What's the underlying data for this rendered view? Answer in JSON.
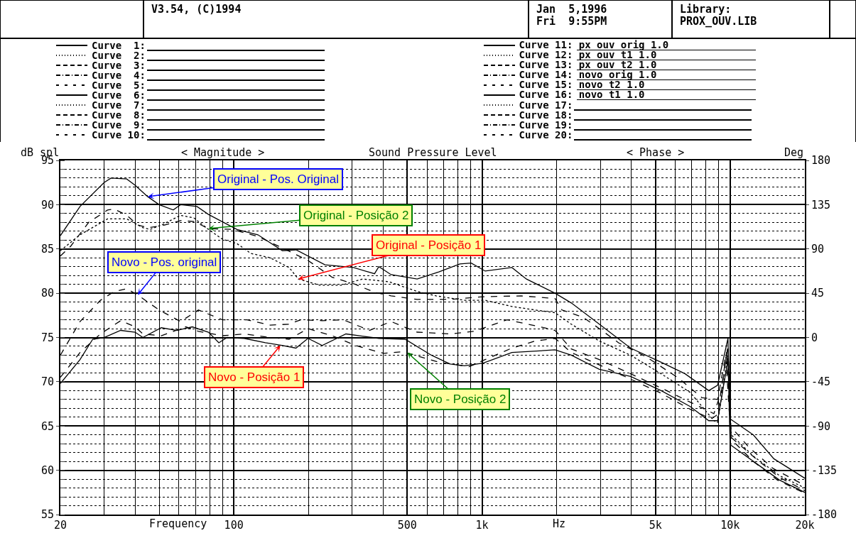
{
  "chart_data": {
    "type": "line",
    "title": "Sound Pressure Level",
    "xlabel": "Frequency",
    "ylabel": "dB spl",
    "y2label": "Deg",
    "log": "x",
    "grid": true,
    "legend": "top",
    "marker": "none",
    "xlim": [
      20,
      20000
    ],
    "xticks": [
      20,
      100,
      500,
      {
        "value": 1000,
        "label": "1k"
      },
      {
        "value": 5000,
        "label": "5k"
      },
      {
        "value": 10000,
        "label": "10k"
      },
      {
        "value": 20000,
        "label": "20k"
      }
    ],
    "ylim": [
      55,
      95
    ],
    "yticks": [
      55,
      60,
      65,
      70,
      75,
      80,
      85,
      90,
      95
    ],
    "y2lim": [
      -180,
      180
    ],
    "y2ticks": [
      -180,
      -135,
      -90,
      -45,
      0,
      45,
      90,
      135,
      180
    ],
    "series": [
      {
        "name": "Curve 11: px ouv orig 1.0",
        "color": "#000000",
        "line_style": "solid",
        "x": [
          20,
          24,
          30,
          32,
          37,
          40,
          45,
          50,
          57,
          61,
          71,
          79,
          103,
          125,
          157,
          178,
          233,
          303,
          369,
          384,
          430,
          548,
          670,
          815,
          905,
          1030,
          1320,
          1510,
          1970,
          2290,
          2970,
          3970,
          5270,
          6580,
          8200,
          8900,
          9800,
          10000,
          12400,
          15000,
          20000
        ],
        "values": [
          86.5,
          89.8,
          92.5,
          93.0,
          92.9,
          92.2,
          90.9,
          90.0,
          89.4,
          90.0,
          89.8,
          88.9,
          87.2,
          86.6,
          84.8,
          84.9,
          83.2,
          82.9,
          82.2,
          83.0,
          82.1,
          81.6,
          82.4,
          83.3,
          83.4,
          82.5,
          82.9,
          81.6,
          80.0,
          78.9,
          76.5,
          73.8,
          72.2,
          70.9,
          69.0,
          69.6,
          74.9,
          65.8,
          64.0,
          61.3,
          59.1
        ]
      },
      {
        "name": "Curve 12: px ouv t1 1.0",
        "color": "#000000",
        "line_style": "dotted",
        "x": [
          20,
          24,
          31,
          37,
          43,
          46,
          52,
          61,
          69,
          79,
          90,
          103,
          117,
          140,
          167,
          182,
          222,
          271,
          330,
          421,
          548,
          653,
          850,
          1030,
          1320,
          1640,
          1970,
          2290,
          2970,
          3970,
          5270,
          6900,
          8600,
          8900,
          9800,
          10100,
          12400,
          15800,
          20000
        ],
        "values": [
          84.8,
          86.6,
          88.4,
          88.4,
          87.4,
          87.2,
          87.8,
          88.8,
          88.5,
          87.2,
          86.1,
          85.6,
          84.5,
          84.0,
          82.9,
          81.6,
          80.9,
          80.9,
          81.6,
          81.3,
          80.2,
          79.7,
          79.2,
          79.2,
          78.5,
          78.1,
          77.8,
          76.5,
          74.6,
          73.0,
          70.9,
          68.8,
          65.6,
          65.4,
          73.0,
          64.0,
          61.6,
          59.4,
          58.0
        ]
      },
      {
        "name": "Curve 13: px ouv t2 1.0",
        "color": "#000000",
        "line_style": "dashed",
        "x": [
          20,
          22,
          26,
          31,
          33,
          37,
          41,
          45,
          51,
          61,
          69,
          79,
          99,
          125,
          160,
          199,
          249,
          309,
          369,
          430,
          548,
          744,
          1010,
          1440,
          1970,
          2100,
          2550,
          2970,
          3550,
          4600,
          6200,
          7700,
          8900,
          9600,
          10000,
          11900,
          14900,
          20000
        ],
        "values": [
          84.2,
          85.3,
          88.0,
          89.4,
          89.5,
          88.8,
          87.7,
          87.4,
          87.6,
          88.2,
          88.1,
          87.3,
          87.2,
          86.4,
          85.0,
          83.7,
          81.8,
          81.0,
          80.1,
          79.7,
          79.3,
          79.3,
          79.6,
          79.7,
          79.4,
          78.1,
          77.3,
          76.0,
          74.4,
          72.8,
          70.4,
          68.2,
          68.0,
          73.0,
          65.0,
          62.6,
          60.2,
          58.3
        ]
      },
      {
        "name": "Curve 14: novo orig 1.0",
        "color": "#000000",
        "line_style": "dashed",
        "x": [
          20,
          24,
          29,
          33,
          37,
          41,
          50,
          61,
          72,
          90,
          113,
          140,
          167,
          186,
          227,
          276,
          352,
          430,
          548,
          744,
          930,
          1260,
          1720,
          1970,
          2290,
          2970,
          3970,
          5270,
          6900,
          8600,
          9200,
          9800,
          10100,
          12700,
          15800,
          20000
        ],
        "values": [
          73.0,
          76.8,
          79.2,
          80.2,
          80.5,
          79.8,
          78.1,
          76.8,
          78.1,
          77.0,
          77.0,
          76.4,
          76.5,
          77.0,
          76.9,
          77.0,
          75.8,
          76.8,
          75.6,
          75.4,
          75.7,
          77.0,
          76.2,
          75.8,
          73.7,
          72.5,
          70.9,
          69.3,
          67.7,
          66.4,
          68.8,
          74.1,
          63.7,
          61.3,
          59.2,
          57.7
        ]
      },
      {
        "name": "Curve 15: novo t2 1.0",
        "color": "#000000",
        "line_style": "dashed",
        "x": [
          20,
          24,
          29,
          35,
          40,
          43,
          51,
          64,
          72,
          90,
          110,
          140,
          167,
          199,
          249,
          309,
          402,
          480,
          670,
          888,
          1030,
          1320,
          1640,
          1970,
          2290,
          2970,
          3970,
          5270,
          6900,
          8400,
          8900,
          9700,
          10100,
          12400,
          15500,
          20000
        ],
        "values": [
          70.5,
          73.3,
          75.4,
          76.9,
          76.2,
          75.4,
          75.2,
          76.2,
          75.7,
          75.2,
          75.4,
          75.0,
          74.8,
          76.0,
          75.2,
          74.1,
          73.2,
          73.4,
          72.2,
          71.7,
          72.5,
          73.8,
          74.6,
          74.9,
          73.3,
          71.9,
          70.3,
          68.7,
          66.9,
          65.8,
          66.3,
          73.5,
          63.5,
          61.0,
          58.9,
          57.4
        ]
      },
      {
        "name": "Curve 16: novo t1 1.0",
        "color": "#000000",
        "line_style": "solid",
        "x": [
          20,
          24,
          27,
          30,
          35,
          40,
          43,
          51,
          59,
          68,
          79,
          87,
          94,
          110,
          134,
          156,
          178,
          199,
          227,
          283,
          384,
          490,
          625,
          744,
          850,
          1010,
          1320,
          1970,
          2290,
          2970,
          3970,
          5270,
          6900,
          8200,
          8900,
          9800,
          10000,
          12700,
          15800,
          20000
        ],
        "values": [
          69.8,
          72.5,
          74.8,
          75.0,
          75.8,
          75.6,
          75.0,
          76.1,
          75.8,
          76.2,
          75.6,
          74.4,
          75.0,
          74.9,
          74.4,
          74.1,
          73.8,
          74.9,
          74.1,
          75.4,
          74.9,
          74.8,
          73.0,
          72.0,
          71.8,
          72.1,
          73.3,
          73.6,
          73.0,
          71.4,
          70.6,
          69.0,
          67.2,
          65.6,
          65.6,
          72.5,
          62.9,
          60.8,
          58.9,
          57.5
        ]
      }
    ],
    "annotations": [
      "V3.54, (C)1994",
      "Jan  5,1996",
      "Fri  9:55PM",
      "Library:",
      "PROX_OUV.LIB",
      "< Magnitude >",
      "< Phase >",
      "Hz",
      "Curve  1:",
      "Curve  2:",
      "Curve  3:",
      "Curve  4:",
      "Curve  5:",
      "Curve  6:",
      "Curve  7:",
      "Curve  8:",
      "Curve  9:",
      "Curve 10:",
      "Curve 17:",
      "Curve 18:",
      "Curve 19:",
      "Curve 20:",
      {
        "text": "Original - Pos. Original",
        "x": 45,
        "y": 90.9
      },
      {
        "text": "Original - Posição 2",
        "x": 79,
        "y": 87.3
      },
      {
        "text": "Original - Posição 1",
        "x": 182,
        "y": 81.6
      },
      {
        "text": "Novo - Pos. original",
        "x": 41,
        "y": 79.8
      },
      {
        "text": "Novo - Posição 1",
        "x": 154,
        "y": 74.1
      },
      {
        "text": "Novo - Posição 2",
        "x": 500,
        "y": 73.3
      }
    ]
  }
}
